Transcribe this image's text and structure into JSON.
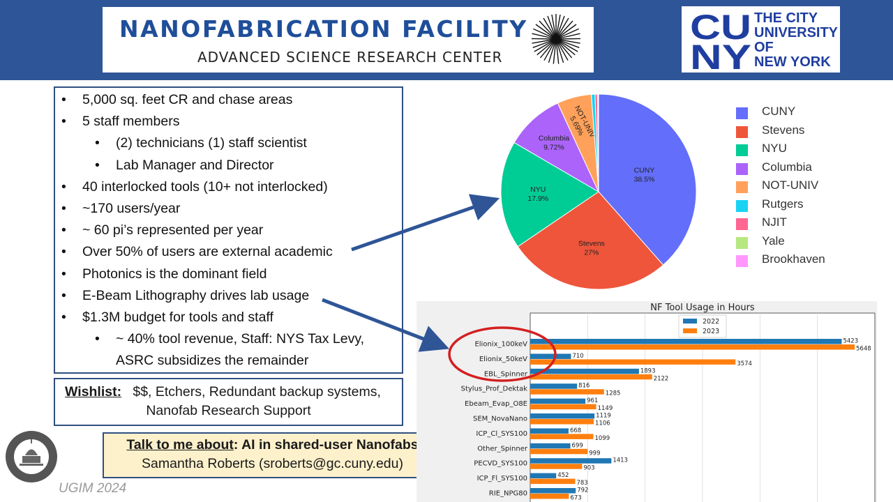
{
  "header": {
    "title": "NANOFABRICATION FACILITY",
    "subtitle": "ADVANCED SCIENCE RESEARCH CENTER",
    "cuny_letters_top": "CU",
    "cuny_letters_bottom": "NY",
    "cuny_text": [
      "THE CITY",
      "UNIVERSITY",
      "OF",
      "NEW YORK"
    ]
  },
  "bullets": [
    {
      "level": 1,
      "text": "5,000 sq. feet CR and chase areas"
    },
    {
      "level": 1,
      "text": "5 staff members"
    },
    {
      "level": 2,
      "text": "(2) technicians (1) staff scientist"
    },
    {
      "level": 2,
      "text": "Lab Manager and Director"
    },
    {
      "level": 1,
      "text": "40 interlocked tools (10+ not interlocked)"
    },
    {
      "level": 1,
      "text": "~170 users/year"
    },
    {
      "level": 1,
      "text": "~ 60 pi’s represented per year"
    },
    {
      "level": 1,
      "text": "Over 50% of users are external academic"
    },
    {
      "level": 1,
      "text": "Photonics is the dominant field"
    },
    {
      "level": 1,
      "text": "E-Beam Lithography drives lab usage"
    },
    {
      "level": 1,
      "text": "$1.3M budget for tools and staff"
    },
    {
      "level": 2,
      "text": "~ 40% tool revenue, Staff: NYS Tax Levy,"
    },
    {
      "level": 2,
      "text": "ASRC subsidizes the remainder",
      "continuation": true
    }
  ],
  "bullet_char": "•",
  "wishlist": {
    "label": "Wishlist:",
    "line1": "$$, Etchers, Redundant backup systems,",
    "line2": "Nanofab Research Support"
  },
  "talk": {
    "label": "Talk to me about",
    "topic": ":  AI in shared-user Nanofabs",
    "contact": "Samantha Roberts (sroberts@gc.cuny.edu)"
  },
  "footer": "UGIM 2024",
  "colors": {
    "header_blue": "#2e5597",
    "box_border": "#2f4f80",
    "arrow": "#2f5597",
    "highlight": "#d32020",
    "series_2022": "#1f77b4",
    "series_2023": "#ff7f0e"
  },
  "chart_data": [
    {
      "type": "pie",
      "categories": [
        "CUNY",
        "Stevens",
        "NYU",
        "Columbia",
        "NOT-UNIV",
        "Rutgers",
        "NJIT",
        "Yale",
        "Brookhaven"
      ],
      "values": [
        38.5,
        27.0,
        17.9,
        9.72,
        5.69,
        0.6,
        0.4,
        0.1,
        0.09
      ],
      "slice_labels": [
        "CUNY\n38.5%",
        "Stevens\n27%",
        "NYU\n17.9%",
        "Columbia\n9.72%",
        "NOT-UNIV\n5.69%",
        "",
        "",
        "",
        ""
      ],
      "colors": [
        "#636efa",
        "#ef553b",
        "#00cc96",
        "#ab63fa",
        "#ffa15a",
        "#19d3f3",
        "#ff6692",
        "#b6e880",
        "#ff97ff"
      ],
      "legend_position": "right"
    },
    {
      "type": "bar",
      "orientation": "horizontal",
      "title": "NF Tool Usage in Hours",
      "categories": [
        "Elionix_100keV",
        "Elionix_50keV",
        "EBL_Spinner",
        "Stylus_Prof_Dektak",
        "Ebeam_Evap_O8E",
        "SEM_NovaNano",
        "ICP_Cl_SYS100",
        "Other_Spinner",
        "PECVD_SYS100",
        "ICP_Fl_SYS100",
        "RIE_NPG80"
      ],
      "series": [
        {
          "name": "2022",
          "values": [
            5423,
            710,
            1893,
            816,
            961,
            1119,
            668,
            699,
            1413,
            452,
            792
          ]
        },
        {
          "name": "2023",
          "values": [
            5648,
            3574,
            2122,
            1285,
            1149,
            1106,
            1099,
            999,
            903,
            783,
            673
          ]
        }
      ],
      "xlim": [
        0,
        6000
      ],
      "grid": true,
      "legend_position": "top-center"
    }
  ]
}
